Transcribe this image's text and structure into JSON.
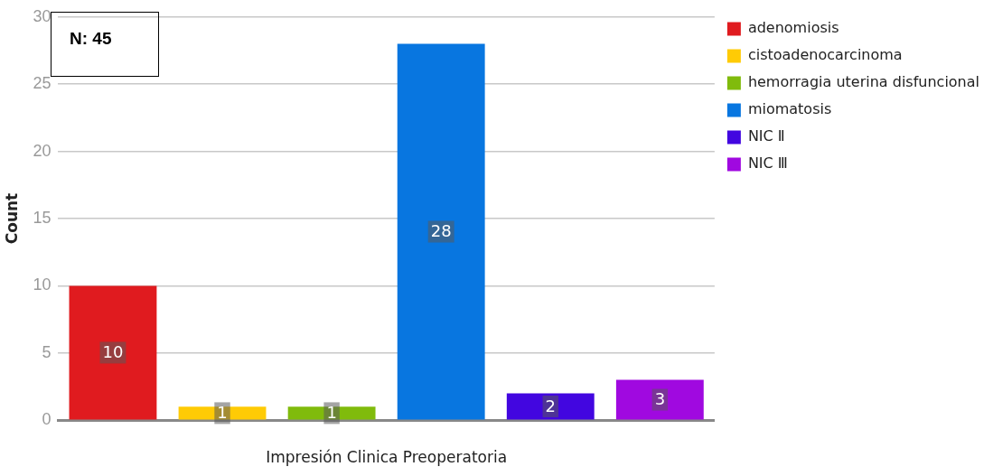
{
  "chart_data": {
    "type": "bar",
    "xlabel": "Impresión Clinica Preoperatoria",
    "ylabel": "Count",
    "categories": [
      null,
      null,
      null,
      null,
      null,
      null
    ],
    "series": [
      {
        "name": "adenomiosis",
        "color": "#e01b1f",
        "values": [
          10,
          null,
          null,
          null,
          null,
          null
        ]
      },
      {
        "name": "cistoadenocarcinoma",
        "color": "#ffcb05",
        "values": [
          null,
          1,
          null,
          null,
          null,
          null
        ]
      },
      {
        "name": "hemorragia uterina disfuncional",
        "color": "#80bb0c",
        "values": [
          null,
          null,
          1,
          null,
          null,
          null
        ]
      },
      {
        "name": "miomatosis",
        "color": "#0876e0",
        "values": [
          null,
          null,
          null,
          28,
          null,
          null
        ]
      },
      {
        "name": "NIC Ⅱ",
        "color": "#4206e0",
        "values": [
          null,
          null,
          null,
          null,
          2,
          null
        ]
      },
      {
        "name": "NIC Ⅲ",
        "color": "#a009e0",
        "values": [
          null,
          null,
          null,
          null,
          null,
          3
        ]
      }
    ],
    "ylim": [
      0,
      30
    ],
    "yticks": [
      0,
      5,
      10,
      15,
      20,
      25,
      30
    ],
    "grid": "y",
    "legend": "right",
    "data_labels": true,
    "annotations": [
      "N: 45"
    ]
  }
}
